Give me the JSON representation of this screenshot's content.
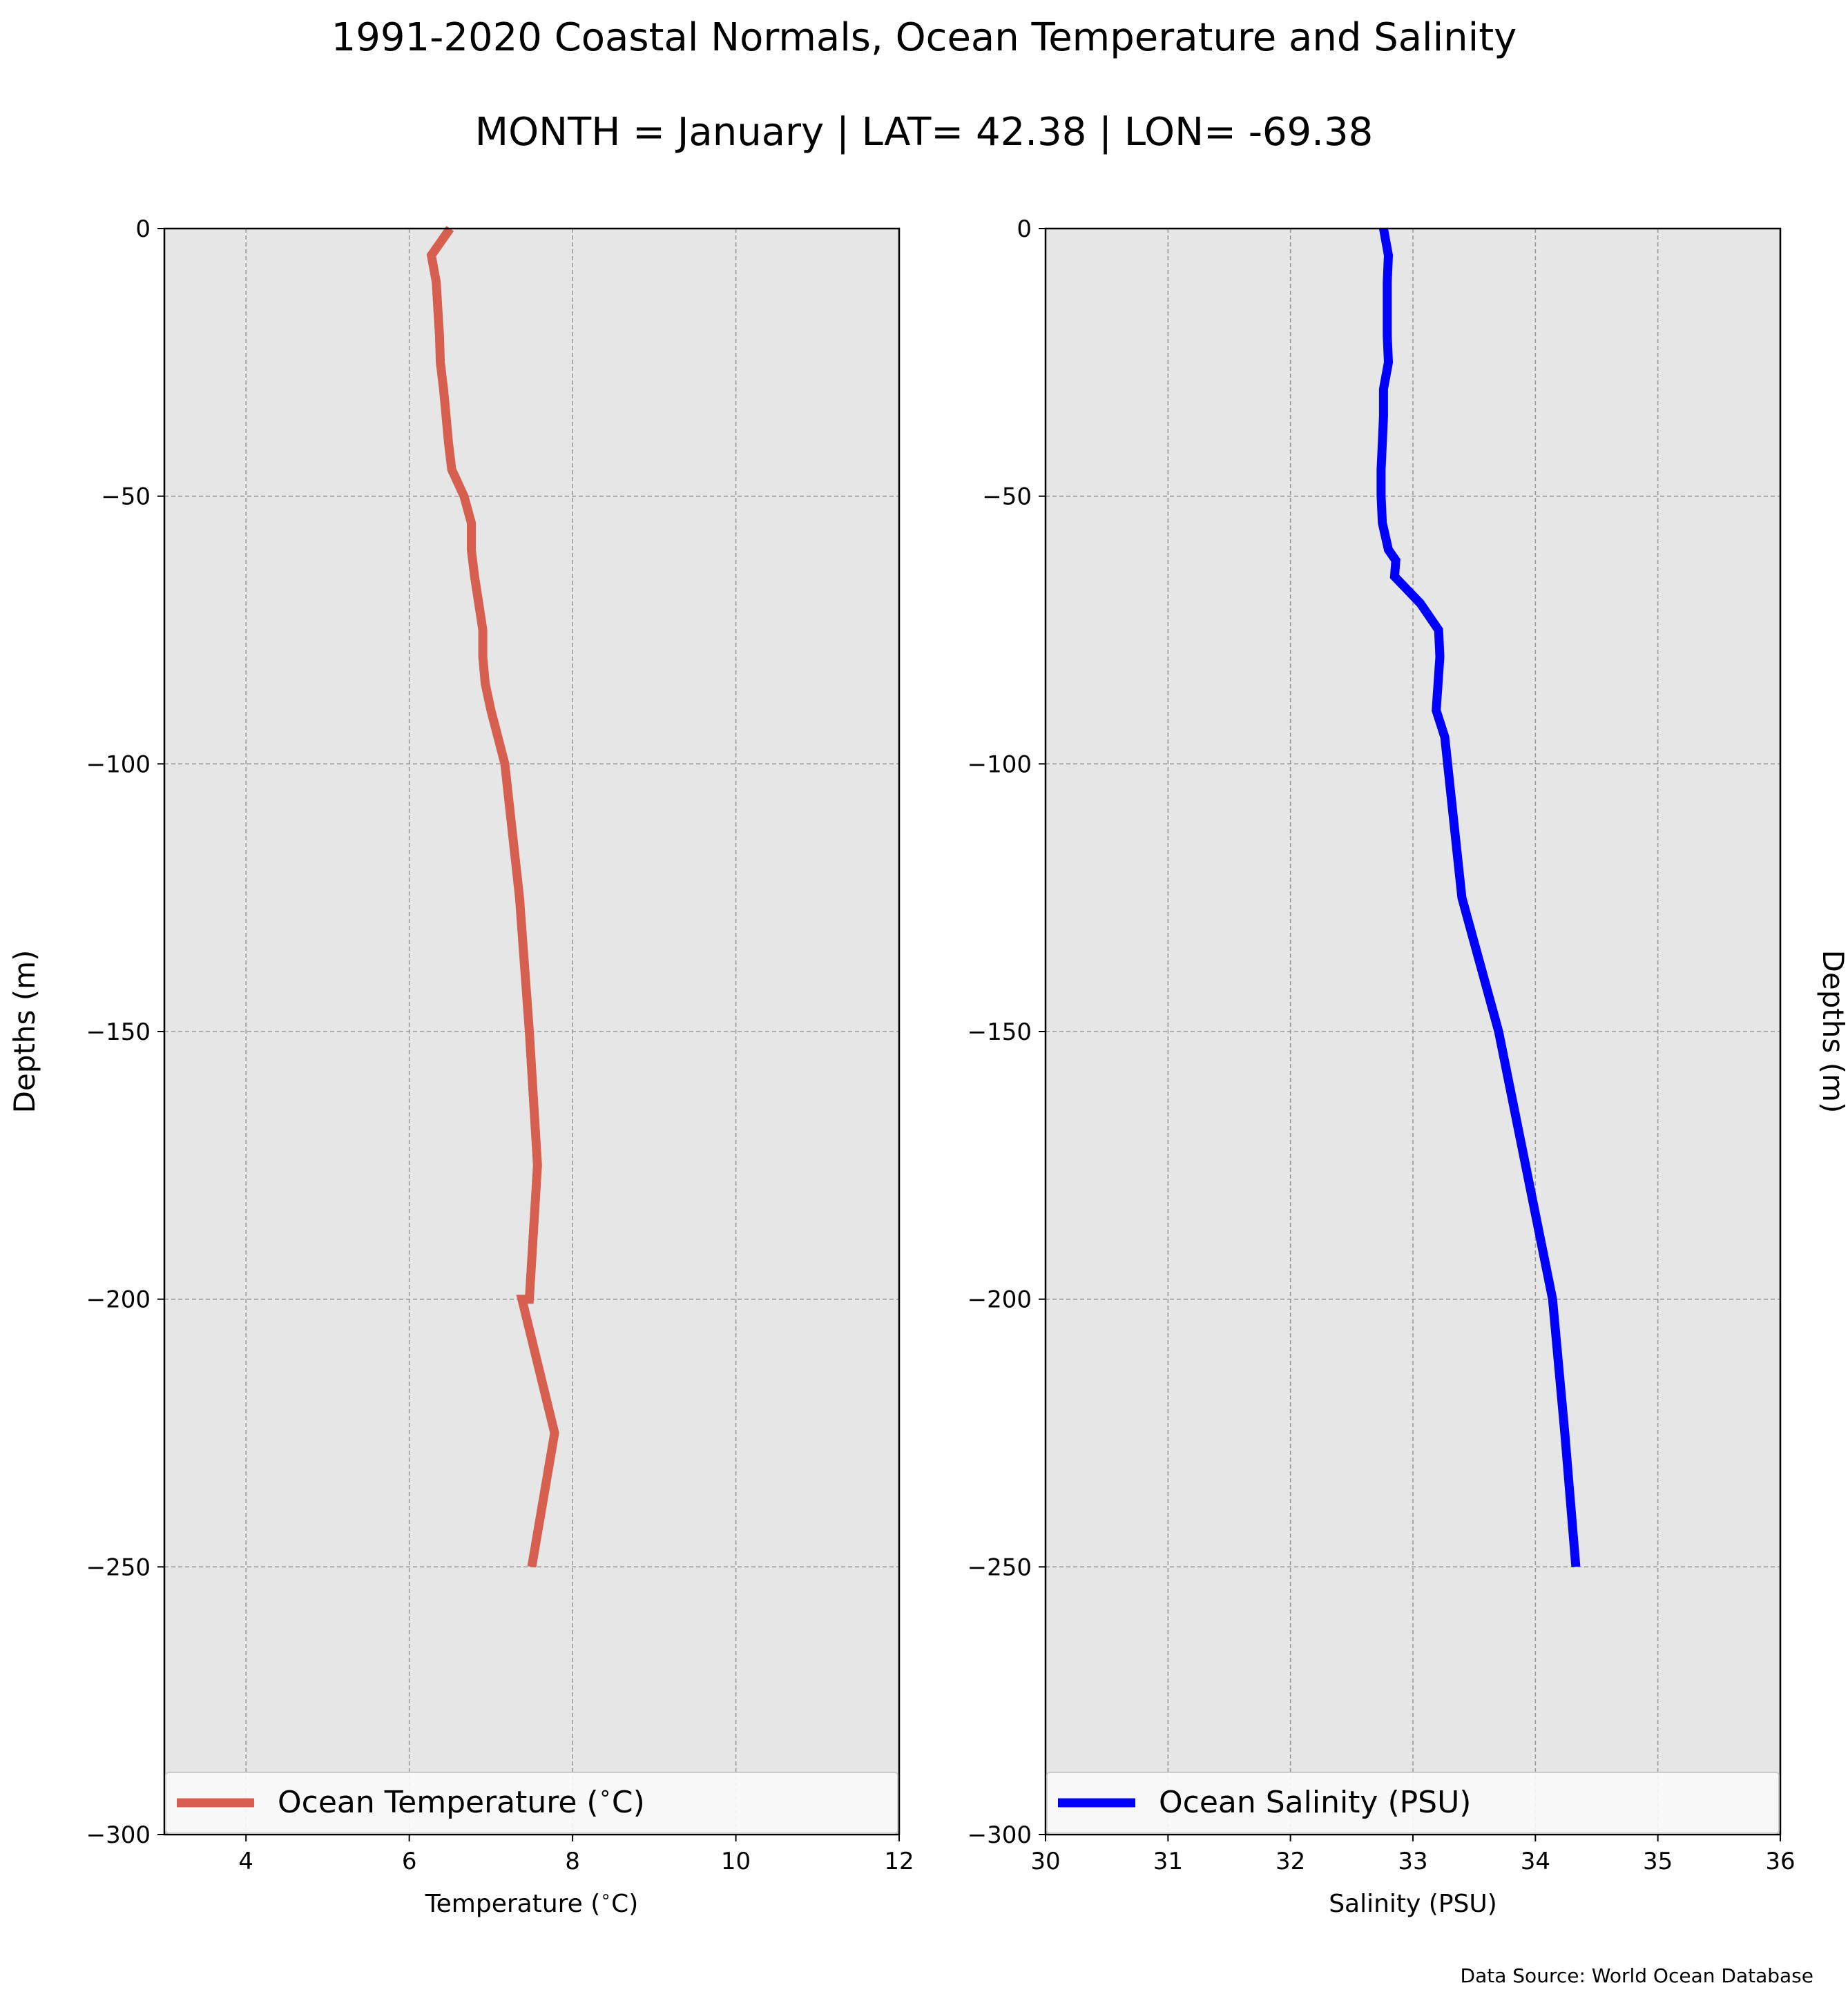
{
  "title": "1991-2020 Coastal Normals, Ocean Temperature and Salinity",
  "subtitle": "MONTH = January | LAT= 42.38 | LON= -69.38",
  "source_note": "Data Source: World Ocean Database",
  "colors": {
    "panel_bg": "#e6e6e6",
    "temperature": "#d65f4f",
    "salinity": "#0000ff",
    "grid": "#9a9a9a"
  },
  "chart_data": [
    {
      "type": "line",
      "xlabel": "Temperature ($^\\circ$C)",
      "ylabel": "Depths (m)",
      "xlim": [
        3,
        12
      ],
      "ylim": [
        -300,
        0
      ],
      "xticks": [
        4,
        6,
        8,
        10,
        12
      ],
      "yticks": [
        0,
        -50,
        -100,
        -150,
        -200,
        -250,
        -300
      ],
      "xtick_labels": [
        "4",
        "6",
        "8",
        "10",
        "12"
      ],
      "ytick_labels": [
        "0",
        "−50",
        "−100",
        "−150",
        "−200",
        "−250",
        "−300"
      ],
      "grid": true,
      "legend_position": "bottom",
      "series": [
        {
          "name": "Ocean Temperature ($^\\circ$C)",
          "color": "#d65f4f",
          "x": [
            6.5,
            6.27,
            6.33,
            6.35,
            6.37,
            6.38,
            6.42,
            6.45,
            6.48,
            6.52,
            6.67,
            6.76,
            6.76,
            6.8,
            6.85,
            6.9,
            6.9,
            6.93,
            7.0,
            7.17,
            7.35,
            7.47,
            7.57,
            7.47,
            7.38,
            7.78,
            7.5
          ],
          "y": [
            0,
            -5,
            -10,
            -15,
            -20,
            -25,
            -30,
            -35,
            -40,
            -45,
            -50,
            -55,
            -60,
            -65,
            -70,
            -75,
            -80,
            -85,
            -90,
            -100,
            -125,
            -150,
            -175,
            -200,
            -200,
            -225,
            -250
          ]
        }
      ]
    },
    {
      "type": "line",
      "xlabel": "Salinity (PSU)",
      "ylabel": "Depths (m)",
      "xlim": [
        30,
        36
      ],
      "ylim": [
        -300,
        0
      ],
      "xticks": [
        30,
        31,
        32,
        33,
        34,
        35,
        36
      ],
      "yticks": [
        0,
        -50,
        -100,
        -150,
        -200,
        -250,
        -300
      ],
      "xtick_labels": [
        "30",
        "31",
        "32",
        "33",
        "34",
        "35",
        "36"
      ],
      "ytick_labels": [
        "0",
        "−50",
        "−100",
        "−150",
        "−200",
        "−250",
        "−300"
      ],
      "grid": true,
      "legend_position": "bottom",
      "series": [
        {
          "name": "Ocean Salinity (PSU)",
          "color": "#0000ff",
          "x": [
            32.76,
            32.8,
            32.79,
            32.79,
            32.79,
            32.8,
            32.76,
            32.76,
            32.75,
            32.74,
            32.74,
            32.75,
            32.8,
            32.86,
            32.85,
            33.06,
            33.21,
            33.22,
            33.19,
            33.26,
            33.4,
            33.7,
            34.14,
            34.24,
            34.33
          ],
          "y": [
            0,
            -5,
            -10,
            -15,
            -20,
            -25,
            -30,
            -35,
            -40,
            -45,
            -50,
            -55,
            -60,
            -62,
            -65,
            -70,
            -75,
            -80,
            -90,
            -95,
            -125,
            -150,
            -200,
            -225,
            -250
          ]
        }
      ]
    }
  ]
}
